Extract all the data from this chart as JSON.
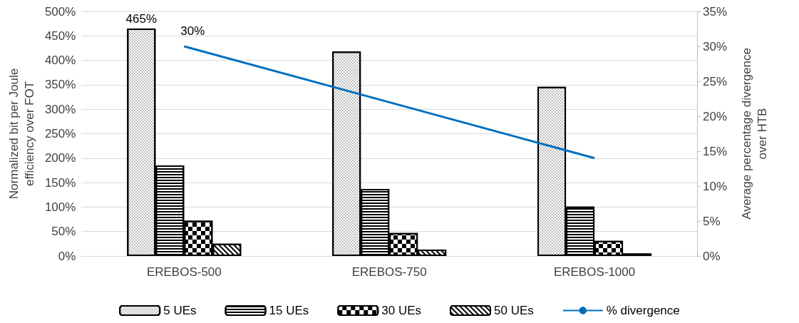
{
  "chart_data": {
    "type": "bar",
    "categories": [
      "EREBOS-500",
      "EREBOS-750",
      "EREBOS-1000"
    ],
    "ylabel": "Normalized bit per Joule efficiency over FOT",
    "y2label": "Average percentage divergence over HTB",
    "ylim": [
      0,
      500
    ],
    "yticks": [
      {
        "value": 0,
        "label": "0%"
      },
      {
        "value": 50,
        "label": "50%"
      },
      {
        "value": 100,
        "label": "100%"
      },
      {
        "value": 150,
        "label": "150%"
      },
      {
        "value": 200,
        "label": "200%"
      },
      {
        "value": 250,
        "label": "250%"
      },
      {
        "value": 300,
        "label": "300%"
      },
      {
        "value": 350,
        "label": "350%"
      },
      {
        "value": 400,
        "label": "400%"
      },
      {
        "value": 450,
        "label": "450%"
      },
      {
        "value": 500,
        "label": "500%"
      }
    ],
    "y2lim": [
      0,
      35
    ],
    "y2ticks": [
      {
        "value": 0,
        "label": "0%"
      },
      {
        "value": 5,
        "label": "5%"
      },
      {
        "value": 10,
        "label": "10%"
      },
      {
        "value": 15,
        "label": "15%"
      },
      {
        "value": 20,
        "label": "20%"
      },
      {
        "value": 25,
        "label": "25%"
      },
      {
        "value": 30,
        "label": "30%"
      },
      {
        "value": 35,
        "label": "35%"
      }
    ],
    "grid": "y",
    "legend": "bottom",
    "series": [
      {
        "name": "5 UEs",
        "color": "#ffffff",
        "values": [
          465,
          418,
          346
        ],
        "value_labels": [
          "465%",
          null,
          null
        ]
      },
      {
        "name": "15 UEs",
        "color": "#ffffff",
        "values": [
          185,
          137,
          101
        ]
      },
      {
        "name": "30 UEs",
        "color": "#ffffff",
        "values": [
          72,
          47,
          31
        ]
      },
      {
        "name": "50 UEs",
        "color": "#ffffff",
        "values": [
          25,
          13,
          5
        ]
      },
      {
        "name": "% divergence",
        "type": "line",
        "axis": "y2",
        "color": "#0070c0",
        "values": [
          30,
          22,
          14
        ],
        "value_labels": [
          "30%",
          null,
          null
        ],
        "marker": "none"
      }
    ]
  }
}
